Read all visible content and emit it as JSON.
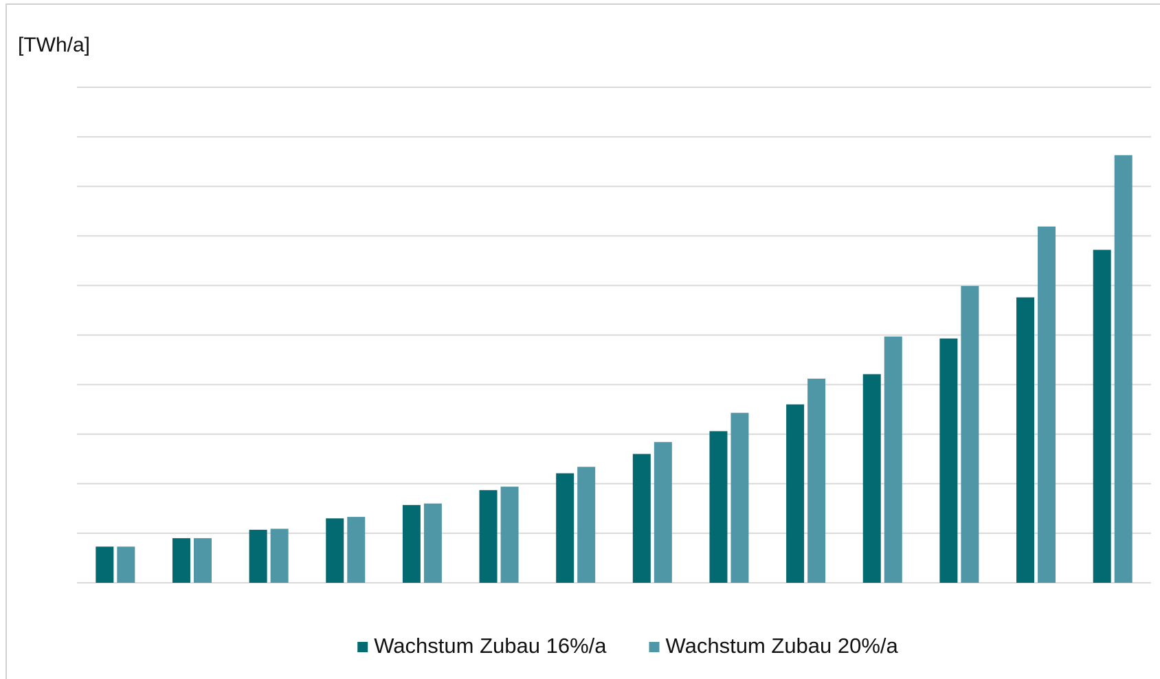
{
  "chart_data": {
    "type": "bar",
    "y_label": "[TWh/a]",
    "categories": [
      null,
      null,
      null,
      null,
      null,
      null,
      null,
      null,
      null,
      null,
      null,
      null,
      null,
      null
    ],
    "series": [
      {
        "name": "Wachstum Zubau 16%/a",
        "color": "#046a72",
        "values": [
          0.73,
          0.9,
          1.07,
          1.3,
          1.57,
          1.87,
          2.21,
          2.6,
          3.06,
          3.6,
          4.21,
          4.93,
          5.76,
          6.72
        ]
      },
      {
        "name": "Wachstum Zubau 20%/a",
        "color": "#4f96a6",
        "values": [
          0.73,
          0.9,
          1.09,
          1.33,
          1.6,
          1.94,
          2.34,
          2.84,
          3.43,
          4.12,
          4.97,
          5.99,
          7.19,
          8.63
        ]
      }
    ],
    "ylim": [
      0,
      10
    ],
    "yticks": [
      0,
      1,
      2,
      3,
      4,
      5,
      6,
      7,
      8,
      9,
      10
    ],
    "grid": true,
    "legend": "bottom"
  }
}
